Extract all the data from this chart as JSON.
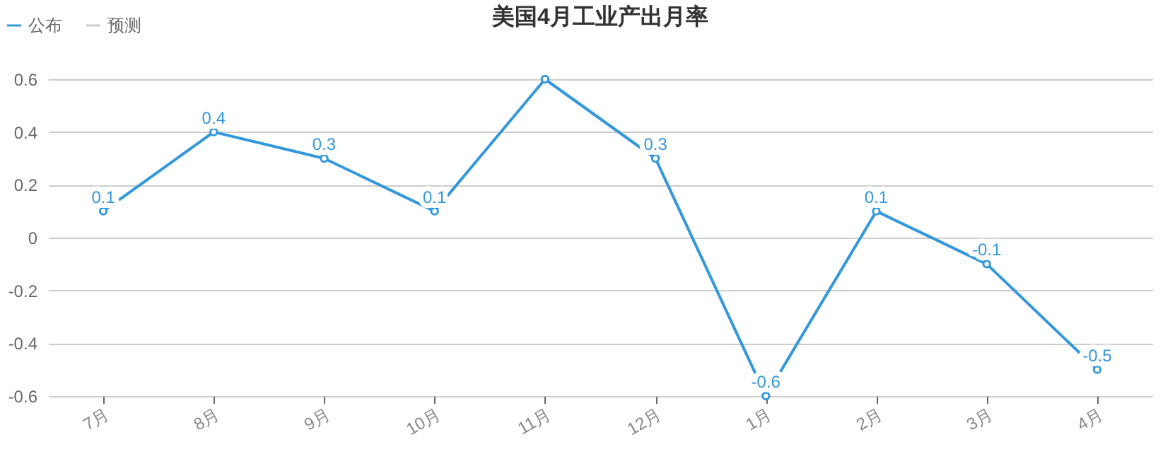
{
  "chart_data": {
    "type": "line",
    "title": "美国4月工业产出月率",
    "categories": [
      "7月",
      "8月",
      "9月",
      "10月",
      "11月",
      "12月",
      "1月",
      "2月",
      "3月",
      "4月"
    ],
    "series": [
      {
        "name": "公布",
        "color": "#3398db",
        "values": [
          0.1,
          0.4,
          0.3,
          0.1,
          0.6,
          0.3,
          -0.6,
          0.1,
          -0.1,
          -0.5
        ],
        "value_labels": [
          "0.1",
          "0.4",
          "0.3",
          "0.1",
          null,
          "0.3",
          "-0.6",
          "0.1",
          "-0.1",
          "-0.5"
        ]
      },
      {
        "name": "预测",
        "color": "#cccccc",
        "values": [
          null,
          null,
          null,
          null,
          null,
          null,
          null,
          null,
          null,
          null
        ]
      }
    ],
    "ylim": [
      -0.6,
      0.6
    ],
    "yticks": [
      -0.6,
      -0.4,
      -0.2,
      0,
      0.2,
      0.4,
      0.6
    ],
    "grid": "y",
    "legend": "top left",
    "marker": "circle",
    "line_style": "solid"
  }
}
